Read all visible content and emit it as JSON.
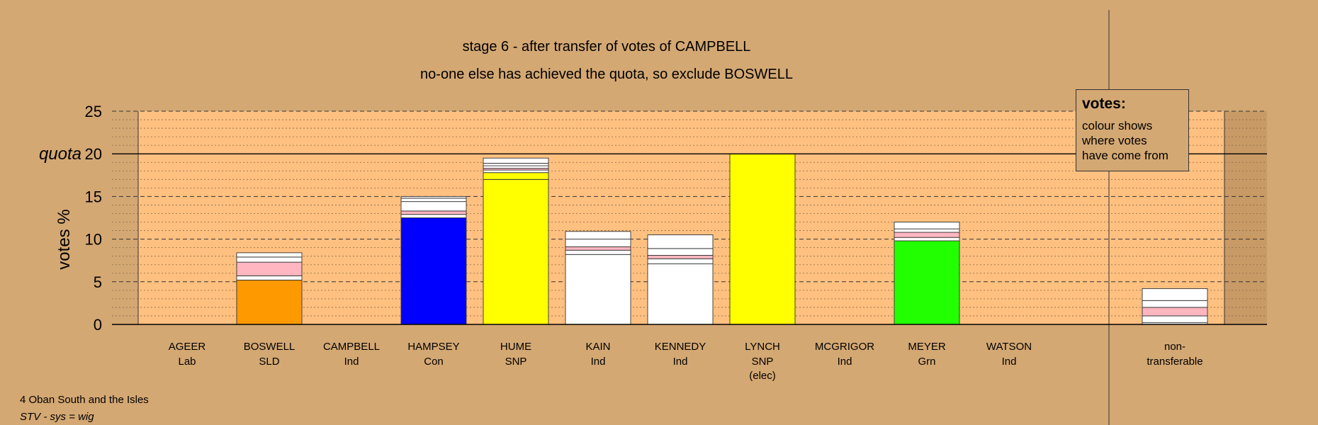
{
  "chart_data": {
    "type": "bar",
    "stacked": true,
    "title": "stage 6 - after transfer of votes of CAMPBELL",
    "subtitle": "no-one else has achieved the quota, so exclude BOSWELL",
    "ylabel": "votes %",
    "quota_label": "quota",
    "quota": 20,
    "ylim": [
      0,
      25
    ],
    "yticks": [
      0,
      5,
      10,
      15,
      20,
      25
    ],
    "candidates": [
      {
        "name": "AGEER",
        "party": "Lab",
        "note": "",
        "segments": []
      },
      {
        "name": "BOSWELL",
        "party": "SLD",
        "note": "",
        "segments": [
          {
            "value": 5.2,
            "color": "#ff9900"
          },
          {
            "value": 0.5,
            "color": "#ffffff"
          },
          {
            "value": 1.6,
            "color": "#ffb6c1"
          },
          {
            "value": 0.6,
            "color": "#ffffff"
          },
          {
            "value": 0.5,
            "color": "#ffffff"
          }
        ]
      },
      {
        "name": "CAMPBELL",
        "party": "Ind",
        "note": "",
        "segments": []
      },
      {
        "name": "HAMPSEY",
        "party": "Con",
        "note": "",
        "segments": [
          {
            "value": 12.5,
            "color": "#0000ff"
          },
          {
            "value": 0.4,
            "color": "#ffffff"
          },
          {
            "value": 0.4,
            "color": "#ffb6c1"
          },
          {
            "value": 1.1,
            "color": "#ffffff"
          },
          {
            "value": 0.4,
            "color": "#ffffff"
          },
          {
            "value": 0.2,
            "color": "#ffffff"
          }
        ]
      },
      {
        "name": "HUME",
        "party": "SNP",
        "note": "",
        "segments": [
          {
            "value": 17.0,
            "color": "#ffff00"
          },
          {
            "value": 0.8,
            "color": "#ffff00"
          },
          {
            "value": 0.3,
            "color": "#ffffff"
          },
          {
            "value": 0.2,
            "color": "#ffb6c1"
          },
          {
            "value": 0.3,
            "color": "#ffffff"
          },
          {
            "value": 0.3,
            "color": "#ffffff"
          },
          {
            "value": 0.6,
            "color": "#ffffff"
          }
        ]
      },
      {
        "name": "KAIN",
        "party": "Ind",
        "note": "",
        "segments": [
          {
            "value": 8.2,
            "color": "#ffffff"
          },
          {
            "value": 0.5,
            "color": "#ffffff"
          },
          {
            "value": 0.4,
            "color": "#ffb6c1"
          },
          {
            "value": 0.9,
            "color": "#ffffff"
          },
          {
            "value": 0.9,
            "color": "#ffffff"
          }
        ]
      },
      {
        "name": "KENNEDY",
        "party": "Ind",
        "note": "",
        "segments": [
          {
            "value": 7.1,
            "color": "#ffffff"
          },
          {
            "value": 0.6,
            "color": "#ffffff"
          },
          {
            "value": 0.4,
            "color": "#ffb6c1"
          },
          {
            "value": 0.8,
            "color": "#ffffff"
          },
          {
            "value": 1.6,
            "color": "#ffffff"
          }
        ]
      },
      {
        "name": "LYNCH",
        "party": "SNP",
        "note": "(elec)",
        "segments": [
          {
            "value": 20.0,
            "color": "#ffff00"
          }
        ]
      },
      {
        "name": "MCGRIGOR",
        "party": "Ind",
        "note": "",
        "segments": []
      },
      {
        "name": "MEYER",
        "party": "Grn",
        "note": "",
        "segments": [
          {
            "value": 9.8,
            "color": "#22ff00"
          },
          {
            "value": 0.4,
            "color": "#ffffff"
          },
          {
            "value": 0.6,
            "color": "#ffb6c1"
          },
          {
            "value": 0.4,
            "color": "#ffffff"
          },
          {
            "value": 0.8,
            "color": "#ffffff"
          }
        ]
      },
      {
        "name": "WATSON",
        "party": "Ind",
        "note": "",
        "segments": []
      }
    ],
    "non_transferable": {
      "label_line1": "non-",
      "label_line2": "transferable",
      "segments": [
        {
          "value": 0.2,
          "color": "#ffffff"
        },
        {
          "value": 0.8,
          "color": "#ffffff"
        },
        {
          "value": 1.0,
          "color": "#ffb6c1"
        },
        {
          "value": 0.8,
          "color": "#ffffff"
        },
        {
          "value": 1.4,
          "color": "#ffffff"
        }
      ]
    },
    "legend": {
      "title": "votes:",
      "lines": [
        "colour shows",
        "where votes",
        "have come from"
      ]
    }
  },
  "footer": {
    "area": "4 Oban South and the Isles",
    "system": "STV - sys = wig"
  },
  "colors": {
    "background": "#d4a873",
    "plot_area": "#ffc080",
    "nt_area": "#c89a66"
  }
}
